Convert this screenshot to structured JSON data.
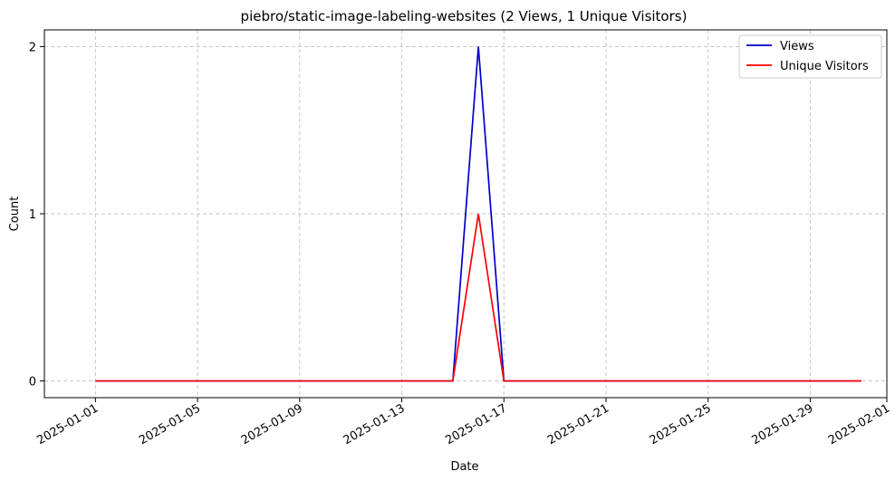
{
  "chart_data": {
    "type": "line",
    "title": "piebro/static-image-labeling-websites (2 Views, 1 Unique Visitors)",
    "xlabel": "Date",
    "ylabel": "Count",
    "x": [
      "2025-01-01",
      "2025-01-02",
      "2025-01-03",
      "2025-01-04",
      "2025-01-05",
      "2025-01-06",
      "2025-01-07",
      "2025-01-08",
      "2025-01-09",
      "2025-01-10",
      "2025-01-11",
      "2025-01-12",
      "2025-01-13",
      "2025-01-14",
      "2025-01-15",
      "2025-01-16",
      "2025-01-17",
      "2025-01-18",
      "2025-01-19",
      "2025-01-20",
      "2025-01-21",
      "2025-01-22",
      "2025-01-23",
      "2025-01-24",
      "2025-01-25",
      "2025-01-26",
      "2025-01-27",
      "2025-01-28",
      "2025-01-29",
      "2025-01-30",
      "2025-01-31"
    ],
    "series": [
      {
        "name": "Views",
        "color": "#0000cc",
        "values": [
          0,
          0,
          0,
          0,
          0,
          0,
          0,
          0,
          0,
          0,
          0,
          0,
          0,
          0,
          0,
          2,
          0,
          0,
          0,
          0,
          0,
          0,
          0,
          0,
          0,
          0,
          0,
          0,
          0,
          0,
          0
        ]
      },
      {
        "name": "Unique Visitors",
        "color": "#ff0000",
        "values": [
          0,
          0,
          0,
          0,
          0,
          0,
          0,
          0,
          0,
          0,
          0,
          0,
          0,
          0,
          0,
          1,
          0,
          0,
          0,
          0,
          0,
          0,
          0,
          0,
          0,
          0,
          0,
          0,
          0,
          0,
          0
        ]
      }
    ],
    "xticks": [
      "2025-01-01",
      "2025-01-05",
      "2025-01-09",
      "2025-01-13",
      "2025-01-17",
      "2025-01-21",
      "2025-01-25",
      "2025-01-29",
      "2025-02-01"
    ],
    "yticks": [
      "0",
      "1",
      "2"
    ],
    "xlim": [
      "2024-12-30",
      "2025-02-01"
    ],
    "ylim": [
      -0.1,
      2.1
    ],
    "grid": true,
    "grid_style": "dashed",
    "legend_position": "top-right"
  }
}
